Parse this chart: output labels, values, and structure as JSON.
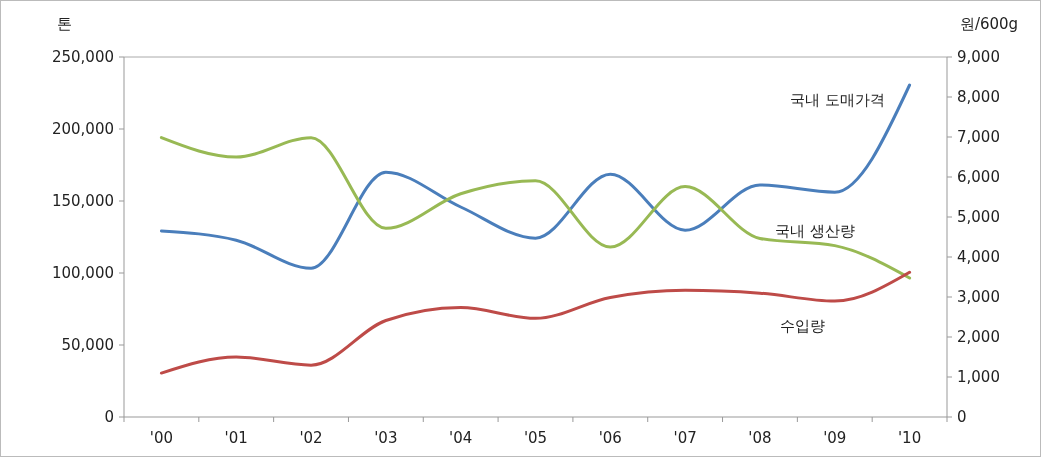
{
  "chart_data": {
    "type": "line",
    "ylabel": "톤",
    "y2label": "원/600g",
    "categories": [
      "'00",
      "'01",
      "'02",
      "'03",
      "'04",
      "'05",
      "'06",
      "'07",
      "'08",
      "'09",
      "'10"
    ],
    "series": [
      {
        "name": "국내 도매가격",
        "color": "#4a7ebb",
        "axis": "y2",
        "values": [
          4650,
          4420,
          3720,
          6120,
          5250,
          4470,
          6070,
          4670,
          5800,
          5620,
          8300
        ]
      },
      {
        "name": "국내 생산량",
        "color": "#98b954",
        "values": [
          194000,
          180500,
          194000,
          131000,
          155000,
          164000,
          118000,
          160000,
          124000,
          119000,
          96500
        ]
      },
      {
        "name": "수입량",
        "color": "#be4b48",
        "values": [
          30500,
          41700,
          36000,
          67000,
          76000,
          68500,
          83000,
          88000,
          86000,
          80500,
          100500
        ]
      }
    ],
    "ylim": [
      0,
      250000
    ],
    "yticks": [
      {
        "value": 0,
        "label": "0"
      },
      {
        "value": 50000,
        "label": "50,000"
      },
      {
        "value": 100000,
        "label": "100,000"
      },
      {
        "value": 150000,
        "label": "150,000"
      },
      {
        "value": 200000,
        "label": "200,000"
      },
      {
        "value": 250000,
        "label": "250,000"
      }
    ],
    "y2lim": [
      0,
      9000
    ],
    "y2ticks": [
      {
        "value": 0,
        "label": "0"
      },
      {
        "value": 1000,
        "label": "1,000"
      },
      {
        "value": 2000,
        "label": "2,000"
      },
      {
        "value": 3000,
        "label": "3,000"
      },
      {
        "value": 4000,
        "label": "4,000"
      },
      {
        "value": 5000,
        "label": "5,000"
      },
      {
        "value": 6000,
        "label": "6,000"
      },
      {
        "value": 7000,
        "label": "7,000"
      },
      {
        "value": 8000,
        "label": "8,000"
      },
      {
        "value": 9000,
        "label": "9,000"
      }
    ],
    "grid": false,
    "marker": "none",
    "line_style": "solid"
  }
}
